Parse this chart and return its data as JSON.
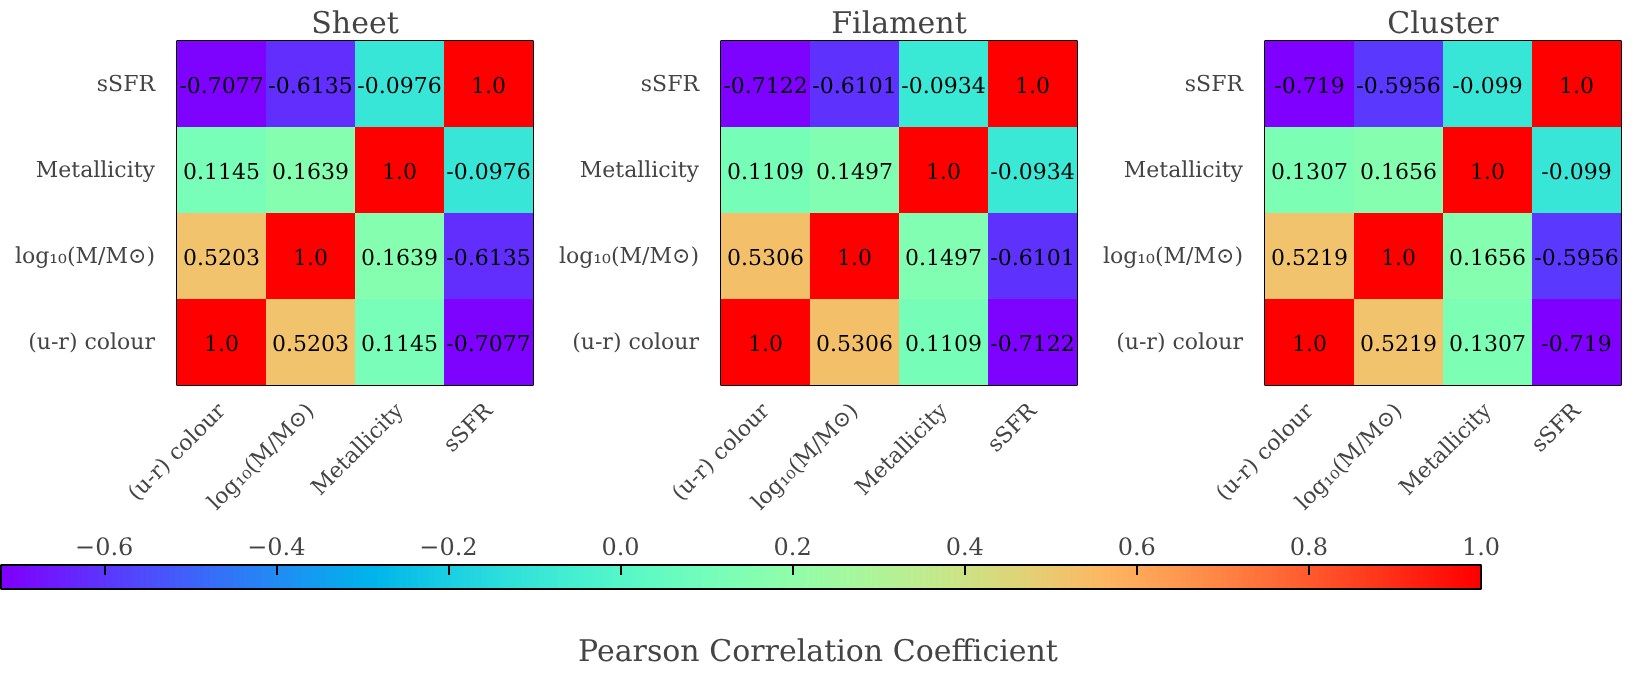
{
  "chart_data": [
    {
      "type": "heatmap",
      "title": "Sheet",
      "categories": [
        "(u-r) colour",
        "log₁₀(M/M⊙)",
        "Metallicity",
        "sSFR"
      ],
      "y_categories": [
        "sSFR",
        "Metallicity",
        "log₁₀(M/M⊙)",
        "(u-r) colour"
      ],
      "cells": [
        [
          -0.7077,
          -0.6135,
          -0.0976,
          1.0
        ],
        [
          0.1145,
          0.1639,
          1.0,
          -0.0976
        ],
        [
          0.5203,
          1.0,
          0.1639,
          -0.6135
        ],
        [
          1.0,
          0.5203,
          0.1145,
          -0.7077
        ]
      ],
      "cell_labels": [
        [
          "-0.7077",
          "-0.6135",
          "-0.0976",
          "1.0"
        ],
        [
          "0.1145",
          "0.1639",
          "1.0",
          "-0.0976"
        ],
        [
          "0.5203",
          "1.0",
          "0.1639",
          "-0.6135"
        ],
        [
          "1.0",
          "0.5203",
          "0.1145",
          "-0.7077"
        ]
      ],
      "data_labels": true,
      "clim": [
        -0.72,
        1.0
      ],
      "clabel": "Pearson Correlation Coefficient",
      "cticks": [
        {
          "value": -0.6,
          "label": "−0.6"
        },
        {
          "value": -0.4,
          "label": "−0.4"
        },
        {
          "value": -0.2,
          "label": "−0.2"
        },
        {
          "value": 0.0,
          "label": "0.0"
        },
        {
          "value": 0.2,
          "label": "0.2"
        },
        {
          "value": 0.4,
          "label": "0.4"
        },
        {
          "value": 0.6,
          "label": "0.6"
        },
        {
          "value": 0.8,
          "label": "0.8"
        },
        {
          "value": 1.0,
          "label": "1.0"
        }
      ]
    },
    {
      "type": "heatmap",
      "title": "Filament",
      "categories": [
        "(u-r) colour",
        "log₁₀(M/M⊙)",
        "Metallicity",
        "sSFR"
      ],
      "y_categories": [
        "sSFR",
        "Metallicity",
        "log₁₀(M/M⊙)",
        "(u-r) colour"
      ],
      "cells": [
        [
          -0.7122,
          -0.6101,
          -0.0934,
          1.0
        ],
        [
          0.1109,
          0.1497,
          1.0,
          -0.0934
        ],
        [
          0.5306,
          1.0,
          0.1497,
          -0.6101
        ],
        [
          1.0,
          0.5306,
          0.1109,
          -0.7122
        ]
      ],
      "cell_labels": [
        [
          "-0.7122",
          "-0.6101",
          "-0.0934",
          "1.0"
        ],
        [
          "0.1109",
          "0.1497",
          "1.0",
          "-0.0934"
        ],
        [
          "0.5306",
          "1.0",
          "0.1497",
          "-0.6101"
        ],
        [
          "1.0",
          "0.5306",
          "0.1109",
          "-0.7122"
        ]
      ],
      "data_labels": true
    },
    {
      "type": "heatmap",
      "title": "Cluster",
      "categories": [
        "(u-r) colour",
        "log₁₀(M/M⊙)",
        "Metallicity",
        "sSFR"
      ],
      "y_categories": [
        "sSFR",
        "Metallicity",
        "log₁₀(M/M⊙)",
        "(u-r) colour"
      ],
      "cells": [
        [
          -0.719,
          -0.5956,
          -0.099,
          1.0
        ],
        [
          0.1307,
          0.1656,
          1.0,
          -0.099
        ],
        [
          0.5219,
          1.0,
          0.1656,
          -0.5956
        ],
        [
          1.0,
          0.5219,
          0.1307,
          -0.719
        ]
      ],
      "cell_labels": [
        [
          "-0.719",
          "-0.5956",
          "-0.099",
          "1.0"
        ],
        [
          "0.1307",
          "0.1656",
          "1.0",
          "-0.099"
        ],
        [
          "0.5219",
          "1.0",
          "0.1656",
          "-0.5956"
        ],
        [
          "1.0",
          "0.5219",
          "0.1307",
          "-0.719"
        ]
      ],
      "data_labels": true
    }
  ]
}
